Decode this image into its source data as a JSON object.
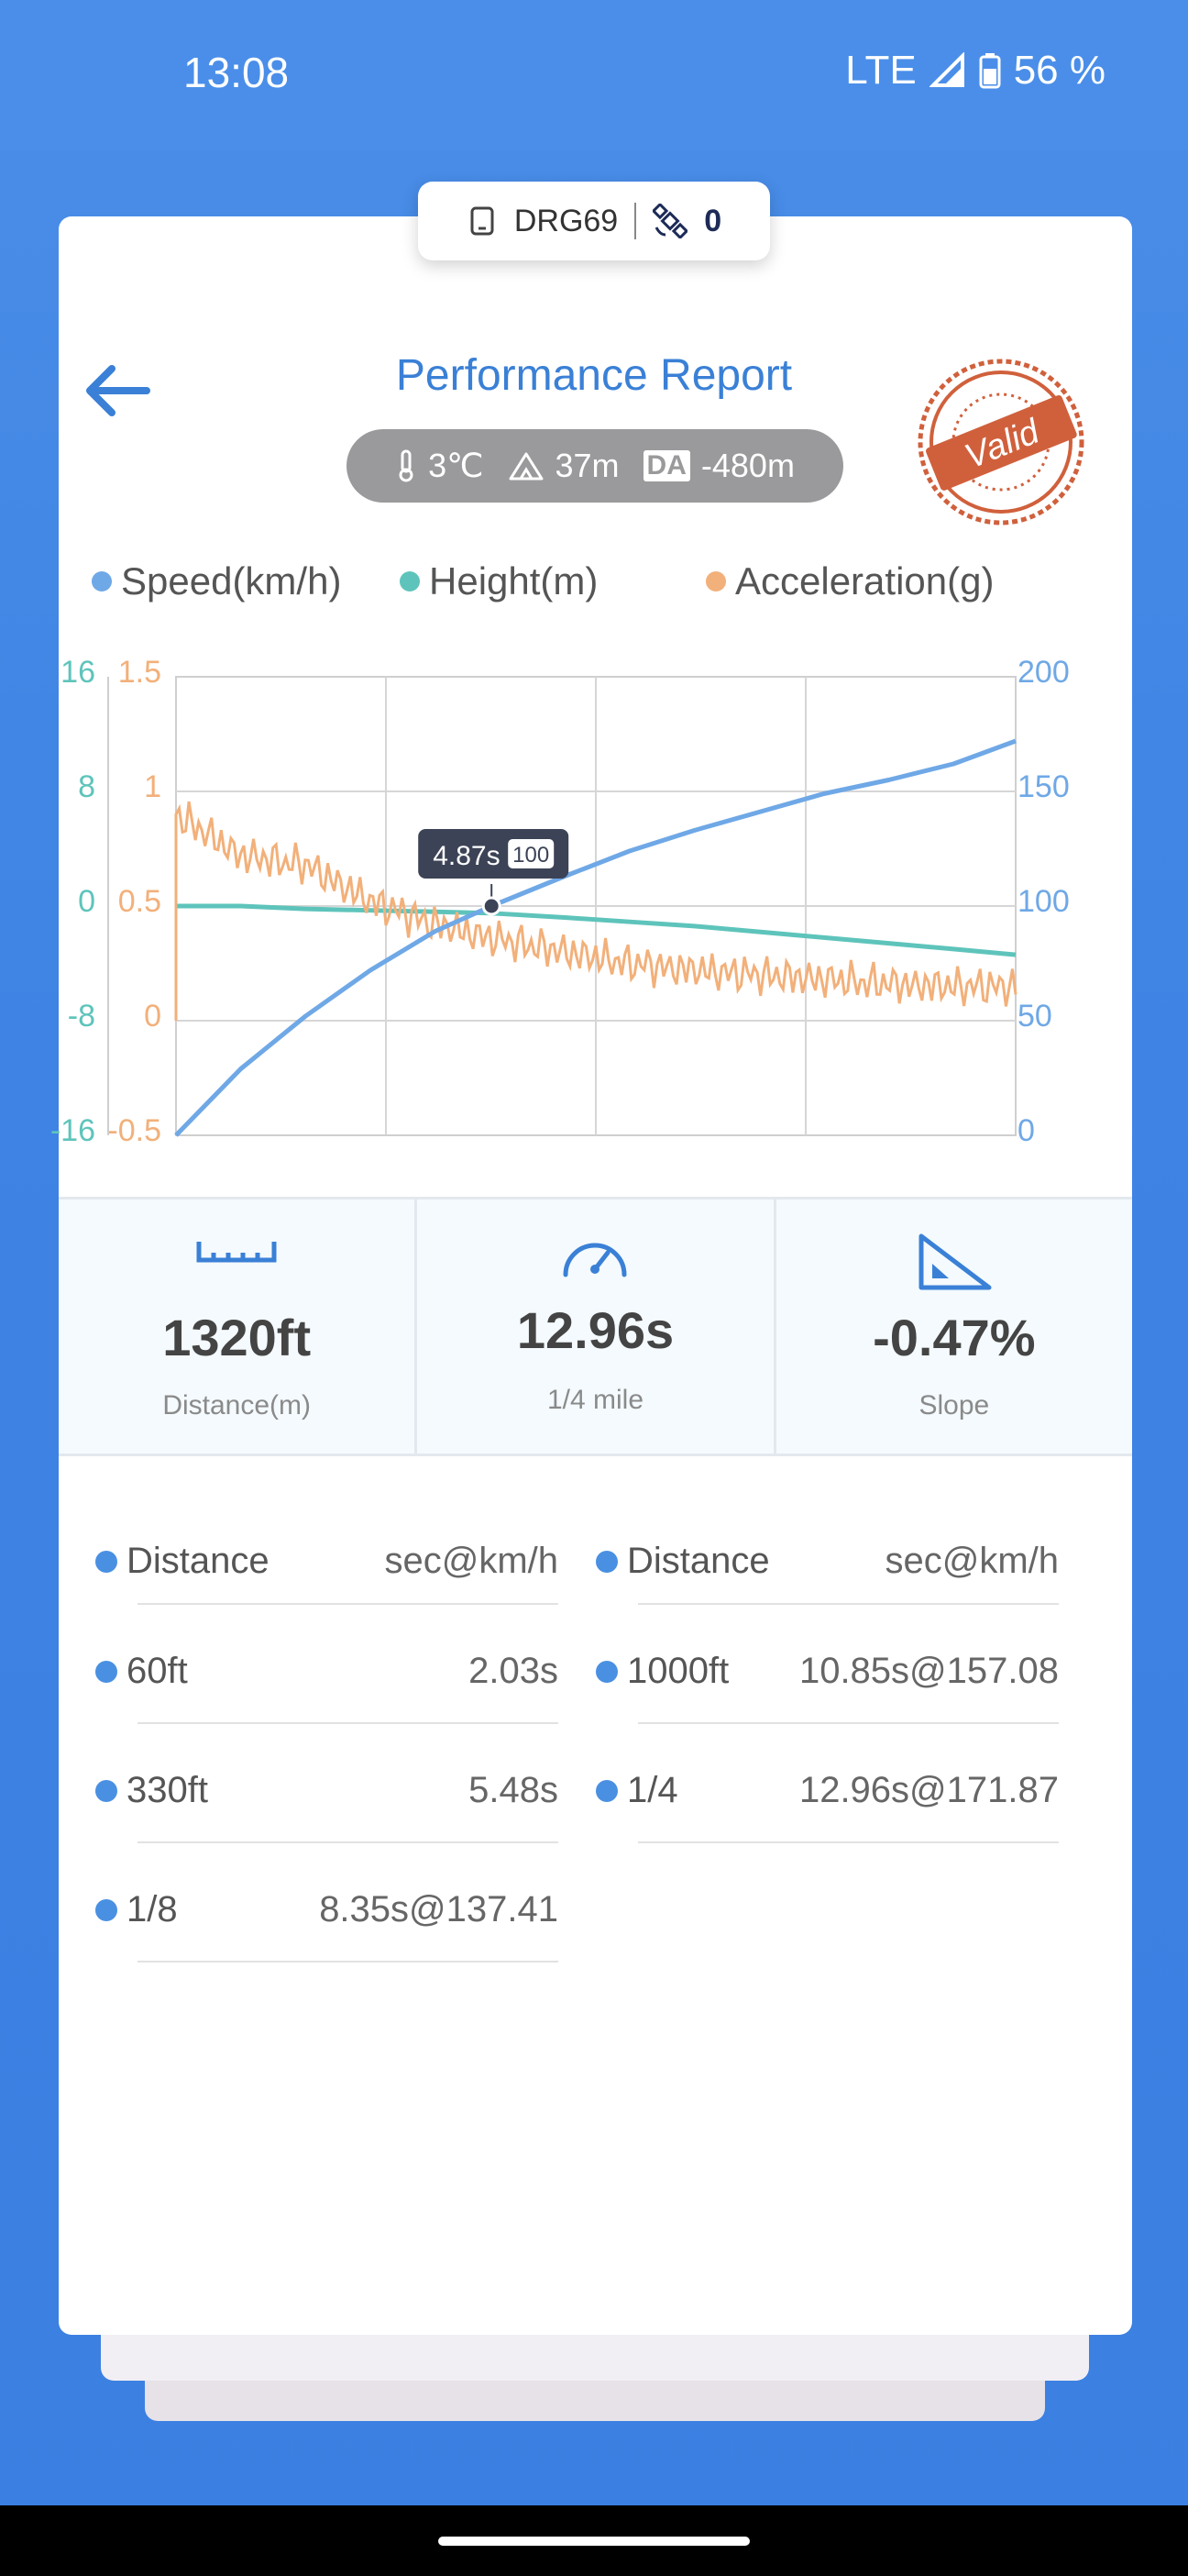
{
  "status_bar": {
    "time": "13:08",
    "network": "LTE",
    "battery": "56 %"
  },
  "device": {
    "name": "DRG69",
    "count": "0"
  },
  "header": {
    "title": "Performance Report",
    "temperature": "3℃",
    "altitude": "37m",
    "da_badge": "DA",
    "density_altitude": "-480m",
    "stamp_text": "Valid"
  },
  "legend": {
    "speed": "Speed(km/h)",
    "height": "Height(m)",
    "acceleration": "Acceleration(g)"
  },
  "colors": {
    "speed": "#6fa8e6",
    "height": "#5ec4bb",
    "acceleration": "#f2b07a",
    "accent": "#3a80d6"
  },
  "chart_data": {
    "type": "line",
    "x": [
      0,
      1,
      2,
      3,
      4,
      4.87,
      6,
      7,
      8,
      9,
      10,
      11,
      12,
      12.96
    ],
    "series": [
      {
        "name": "Speed(km/h)",
        "axis": "right",
        "values": [
          0,
          29,
          52,
          72,
          89,
          100,
          113,
          124,
          133,
          141,
          149,
          155,
          162,
          172
        ]
      },
      {
        "name": "Height(m)",
        "axis": "left",
        "values": [
          0,
          0,
          -0.2,
          -0.3,
          -0.4,
          -0.5,
          -0.8,
          -1.1,
          -1.4,
          -1.8,
          -2.2,
          -2.6,
          -3,
          -3.4
        ]
      },
      {
        "name": "Acceleration(g)",
        "axis": "left2",
        "values": [
          0.9,
          0.72,
          0.68,
          0.52,
          0.42,
          0.36,
          0.3,
          0.25,
          0.22,
          0.2,
          0.18,
          0.16,
          0.15,
          0.15
        ]
      }
    ],
    "height_axis_ticks": [
      "16",
      "8",
      "0",
      "-8",
      "-16"
    ],
    "acceleration_axis_ticks": [
      "1.5",
      "1",
      "0.5",
      "0",
      "-0.5"
    ],
    "speed_axis_ticks": [
      "200",
      "150",
      "100",
      "50",
      "0"
    ],
    "speed_ylim": [
      0,
      200
    ],
    "acceleration_ylim": [
      -0.5,
      1.5
    ],
    "height_ylim": [
      -16,
      16
    ],
    "xlim": [
      0,
      12.96
    ],
    "grid": true,
    "tooltip": {
      "time": "4.87s",
      "value": "100"
    }
  },
  "stats": [
    {
      "icon": "ruler-icon",
      "value": "1320ft",
      "label": "Distance(m)"
    },
    {
      "icon": "speedometer-icon",
      "value": "12.96s",
      "label": "1/4 mile"
    },
    {
      "icon": "slope-icon",
      "value": "-0.47%",
      "label": "Slope"
    }
  ],
  "splits": {
    "left": [
      {
        "name": "Distance",
        "value": "sec@km/h"
      },
      {
        "name": "60ft",
        "value": "2.03s"
      },
      {
        "name": "330ft",
        "value": "5.48s"
      },
      {
        "name": "1/8",
        "value": "8.35s@137.41"
      }
    ],
    "right": [
      {
        "name": "Distance",
        "value": "sec@km/h"
      },
      {
        "name": "1000ft",
        "value": "10.85s@157.08"
      },
      {
        "name": "1/4",
        "value": "12.96s@171.87"
      }
    ]
  }
}
